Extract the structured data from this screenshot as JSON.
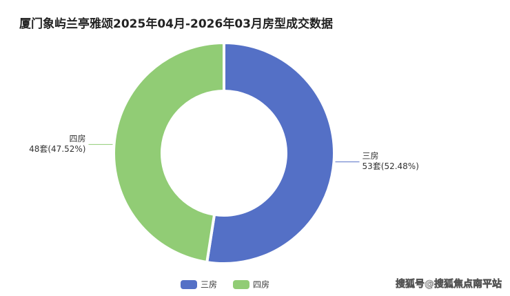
{
  "chart_data": {
    "type": "pie",
    "title": "厦门象屿兰亭雅颂2025年04月-2026年03月房型成交数据",
    "categories": [
      "三房",
      "四房"
    ],
    "values": [
      53,
      48
    ],
    "value_labels": [
      "53套(52.48%)",
      "48套(47.52%)"
    ],
    "colors": [
      "#5470c6",
      "#91cc75"
    ],
    "donut": true,
    "legend": "bottom"
  },
  "watermark": "搜狐号@搜狐焦点南平站"
}
